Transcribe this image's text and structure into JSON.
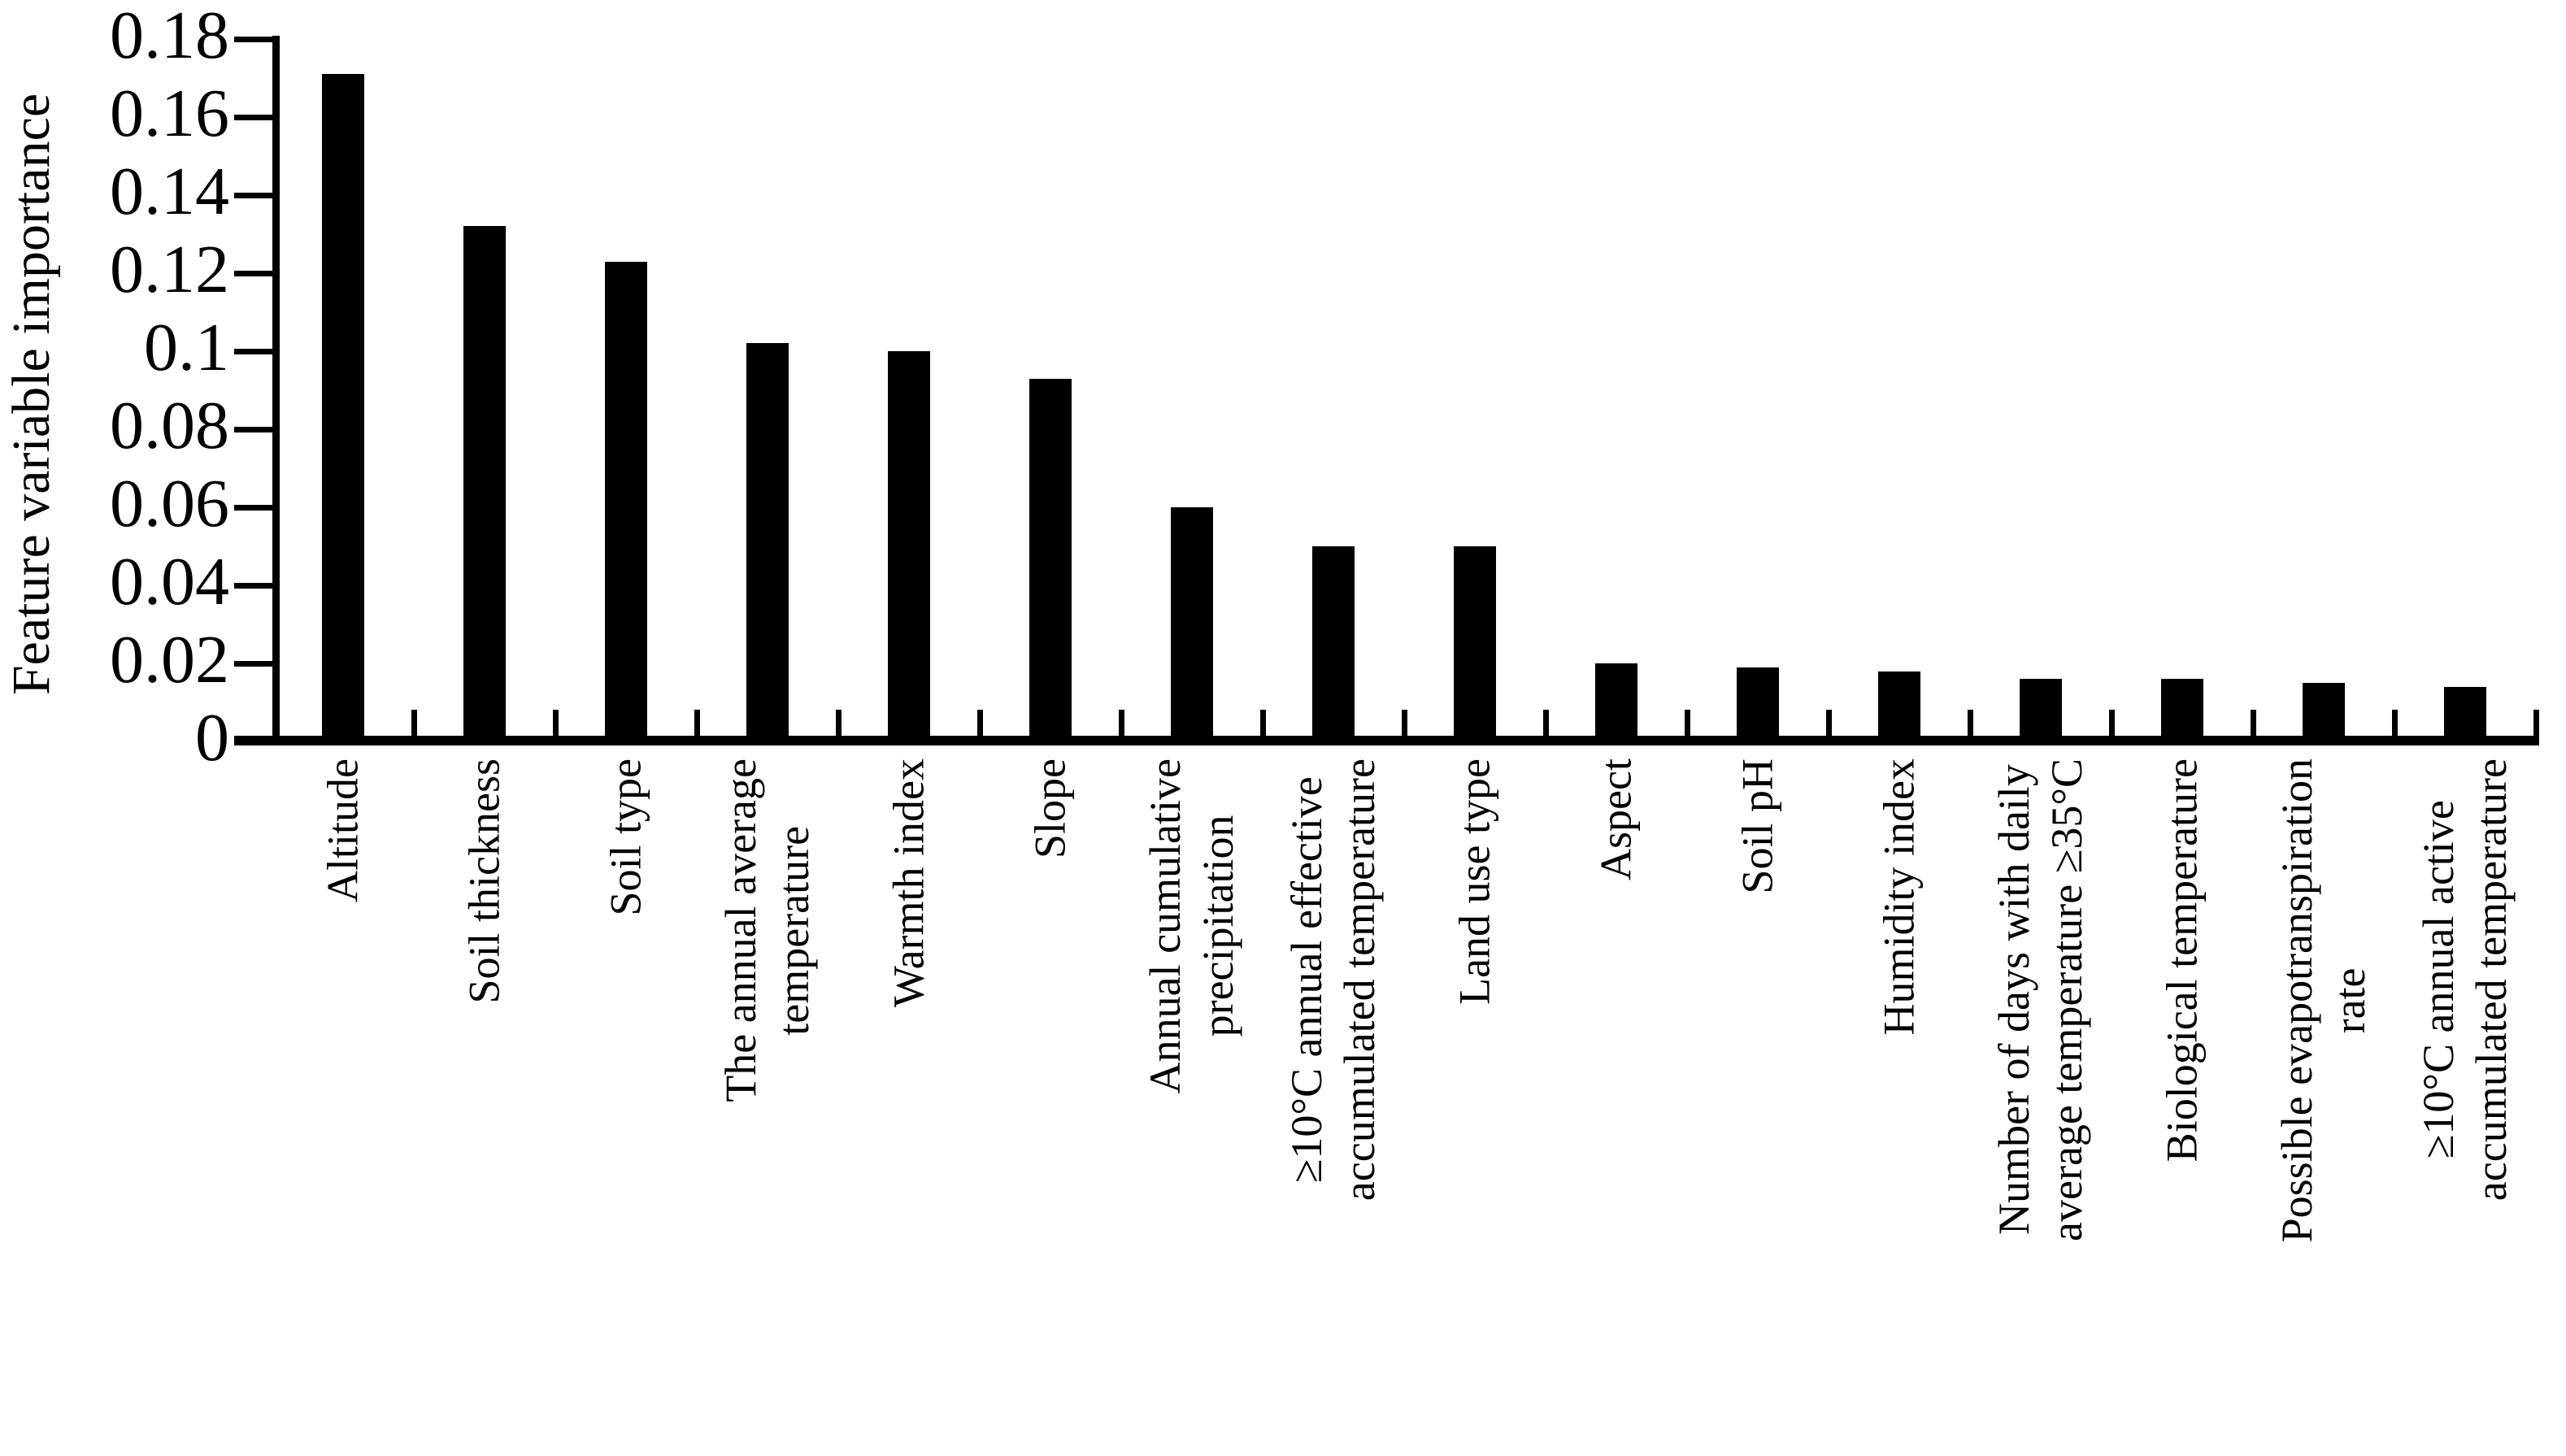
{
  "chart_data": {
    "type": "bar",
    "title": "",
    "xlabel": "",
    "ylabel": "Feature variable importance",
    "ylim": [
      0,
      0.18
    ],
    "grid": false,
    "legend": false,
    "bar_color": "#000000",
    "background_color": "#ffffff",
    "text_color": "#000000",
    "yticks": [
      {
        "label": "0",
        "value": 0
      },
      {
        "label": "0.02",
        "value": 0.02
      },
      {
        "label": "0.04",
        "value": 0.04
      },
      {
        "label": "0.06",
        "value": 0.06
      },
      {
        "label": "0.08",
        "value": 0.08
      },
      {
        "label": "0.1",
        "value": 0.1
      },
      {
        "label": "0.12",
        "value": 0.12
      },
      {
        "label": "0.14",
        "value": 0.14
      },
      {
        "label": "0.16",
        "value": 0.16
      },
      {
        "label": "0.18",
        "value": 0.18
      }
    ],
    "categories": [
      "Altitude",
      "Soil thickness",
      "Soil type",
      "The annual average temperature",
      "Warmth index",
      "Slope",
      "Annual cumulative precipitation",
      "≥10°C annual effective accumulated temperature",
      "Land use type",
      "Aspect",
      "Soil pH",
      "Humidity index",
      "Number of days with daily average temperature ≥35°C",
      "Biological temperature",
      "Possible evapotranspiration rate",
      "≥10°C annual active accumulated temperature"
    ],
    "categories_display": [
      [
        "Altitude"
      ],
      [
        "Soil thickness"
      ],
      [
        "Soil type"
      ],
      [
        "The annual average",
        "temperature"
      ],
      [
        "Warmth index"
      ],
      [
        "Slope"
      ],
      [
        "Annual cumulative",
        "precipitation"
      ],
      [
        "≥10°C annual effective",
        "accumulated temperature"
      ],
      [
        "Land use type"
      ],
      [
        "Aspect"
      ],
      [
        "Soil pH"
      ],
      [
        "Humidity index"
      ],
      [
        "Number of days with daily",
        "average temperature ≥35°C"
      ],
      [
        "Biological temperature"
      ],
      [
        "Possible evapotranspiration",
        "rate"
      ],
      [
        "≥10°C annual active",
        "accumulated temperature"
      ]
    ],
    "values": [
      0.171,
      0.132,
      0.123,
      0.102,
      0.1,
      0.093,
      0.06,
      0.05,
      0.05,
      0.02,
      0.019,
      0.018,
      0.016,
      0.016,
      0.015,
      0.014
    ]
  }
}
